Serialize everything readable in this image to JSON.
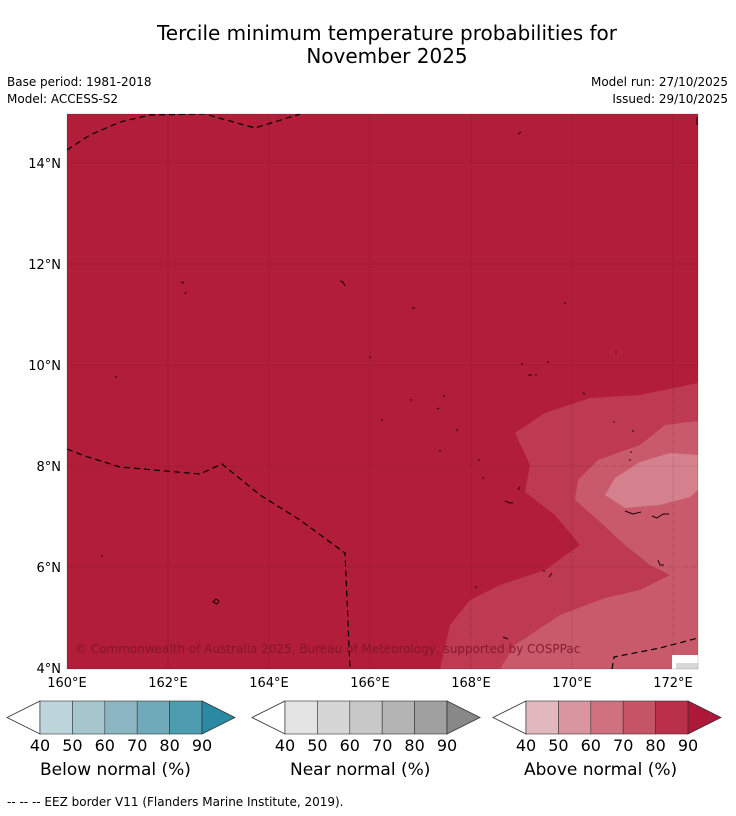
{
  "header": {
    "title_line1": "Tercile minimum temperature probabilities for",
    "title_line2": "November 2025",
    "base_period": "Base period: 1981-2018",
    "model": "Model: ACCESS-S2",
    "model_run": "Model run: 27/10/2025",
    "issued": "Issued: 29/10/2025"
  },
  "map": {
    "lat_labels": [
      "14°N",
      "12°N",
      "10°N",
      "8°N",
      "6°N",
      "4°N"
    ],
    "lon_labels": [
      "160°E",
      "162°E",
      "164°E",
      "166°E",
      "168°E",
      "170°E",
      "172°E"
    ],
    "copyright": "© Commonwealth of Australia 2025, Bureau of Meteorology, supported by COSPPac",
    "colors": {
      "above_90": "#b21e3a",
      "above_80": "#bd3a52",
      "above_70": "#c85a6c",
      "above_60": "#d4808d"
    }
  },
  "legends": [
    {
      "name": "Below normal (%)",
      "ticks": [
        "40",
        "50",
        "60",
        "70",
        "80",
        "90"
      ],
      "colors": [
        "#bfd5dc",
        "#a6c6cd",
        "#8ab6c2",
        "#6eaab9",
        "#4e9cb0",
        "#2a8aa3"
      ]
    },
    {
      "name": "Near normal (%)",
      "ticks": [
        "40",
        "50",
        "60",
        "70",
        "80",
        "90"
      ],
      "colors": [
        "#e4e4e4",
        "#d6d6d6",
        "#c8c8c8",
        "#b4b4b4",
        "#a0a0a0",
        "#888888"
      ]
    },
    {
      "name": "Above normal (%)",
      "ticks": [
        "40",
        "50",
        "60",
        "70",
        "80",
        "90"
      ],
      "colors": [
        "#e2b7bd",
        "#d8959f",
        "#cf717f",
        "#c55465",
        "#ba3049",
        "#ad1738"
      ]
    }
  ],
  "footer": "--  --  -- EEZ border V11 (Flanders Marine Institute, 2019)."
}
